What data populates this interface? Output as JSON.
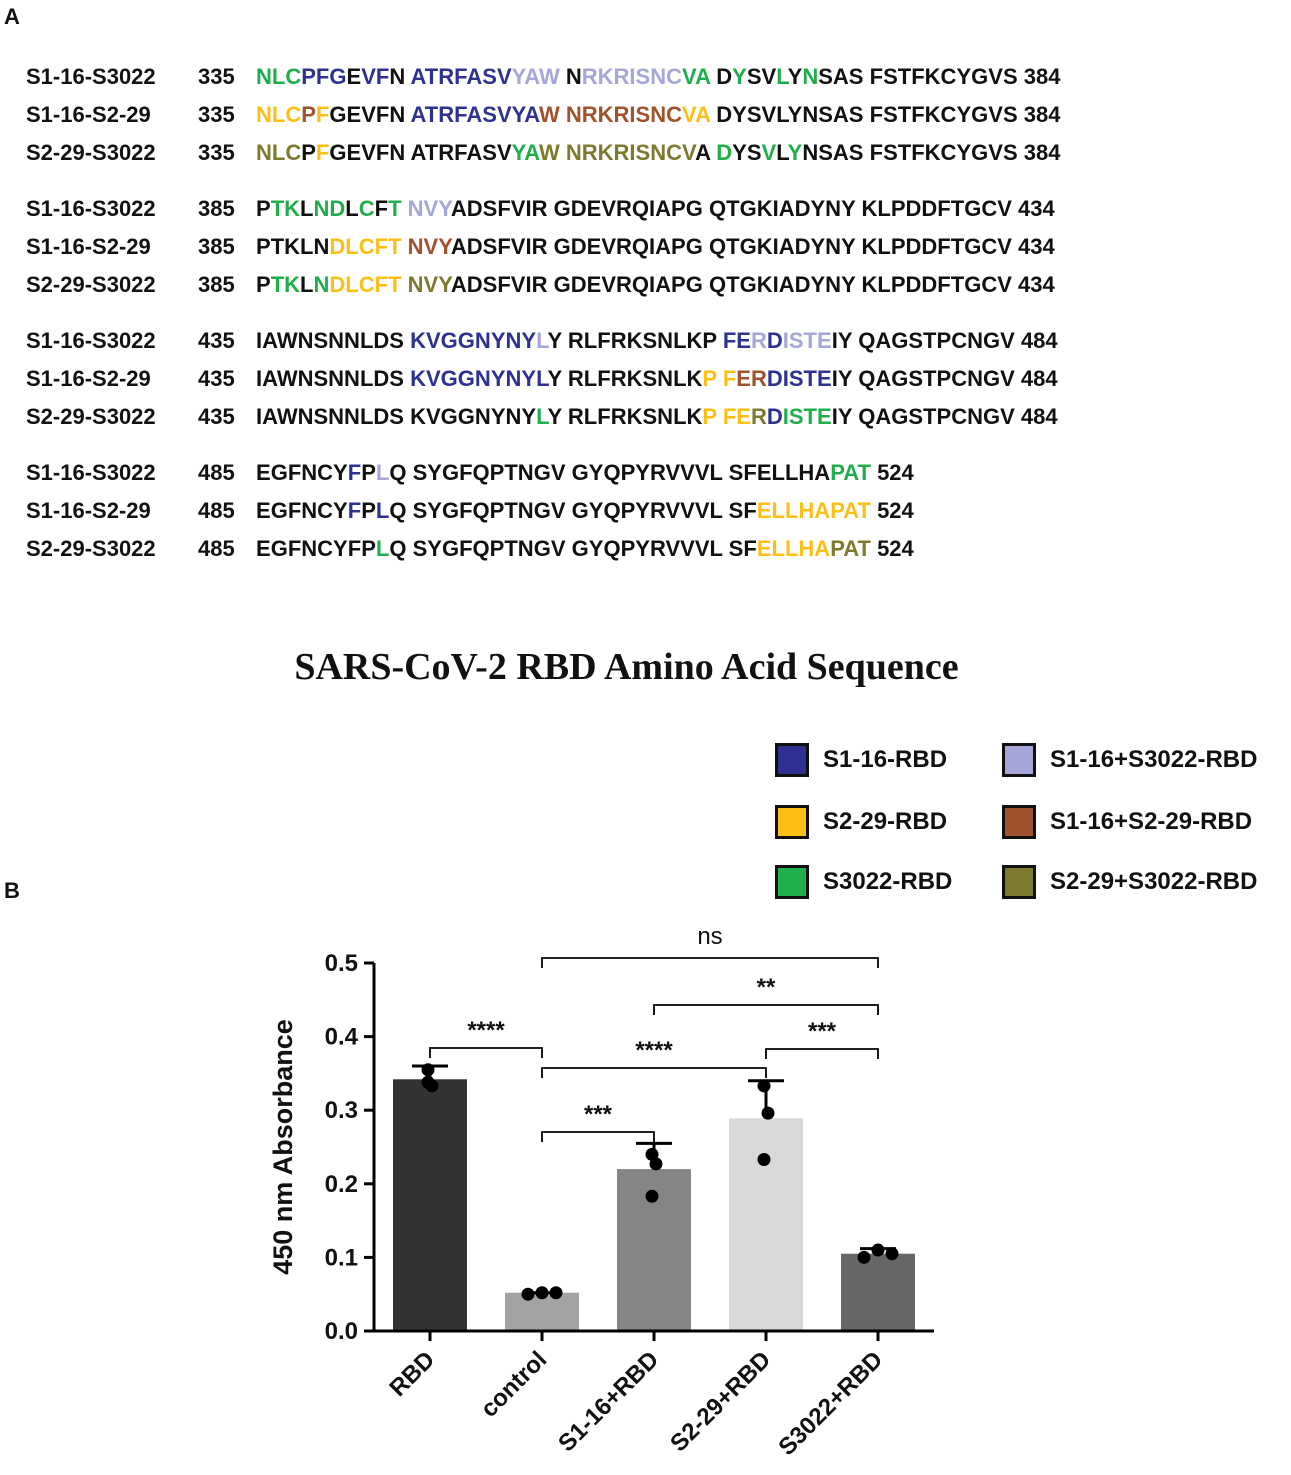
{
  "panels": {
    "a": "A",
    "b": "B"
  },
  "alignment": {
    "title": "SARS-CoV-2 RBD Amino Acid Sequence",
    "blocks": [
      {
        "rows": [
          {
            "name": "S1-16-S3022",
            "start": "335",
            "sequence": "NLCPFGEVFN ATRFASVYAW NRKRISNCVA DYSVLYNSAS FSTFKCYGVS",
            "end": "384"
          },
          {
            "name": "S1-16-S2-29",
            "start": "335",
            "sequence": "NLCPFGEVFN ATRFASVYAW NRKRISNCVA DYSVLYNSAS FSTFKCYGVS",
            "end": "384"
          },
          {
            "name": "S2-29-S3022",
            "start": "335",
            "sequence": "NLCPFGEVFN ATRFASVYAW NRKRISNCVA DYSVLYNSAS FSTFKCYGVS",
            "end": "384"
          }
        ]
      },
      {
        "rows": [
          {
            "name": "S1-16-S3022",
            "start": "385",
            "sequence": "PTKLNDLCFT NVYADSFVIR GDEVRQIAPG QTGKIADYNY KLPDDFTGCV",
            "end": "434"
          },
          {
            "name": "S1-16-S2-29",
            "start": "385",
            "sequence": "PTKLNDLCFT NVYADSFVIR GDEVRQIAPG QTGKIADYNY KLPDDFTGCV",
            "end": "434"
          },
          {
            "name": "S2-29-S3022",
            "start": "385",
            "sequence": "PTKLNDLCFT NVYADSFVIR GDEVRQIAPG QTGKIADYNY KLPDDFTGCV",
            "end": "434"
          }
        ]
      },
      {
        "rows": [
          {
            "name": "S1-16-S3022",
            "start": "435",
            "sequence": "IAWNSNNLDS KVGGNYNYLY RLFRKSNLKP FERDISTEIY QAGSTPCNGV",
            "end": "484"
          },
          {
            "name": "S1-16-S2-29",
            "start": "435",
            "sequence": "IAWNSNNLDS KVGGNYNYLY RLFRKSNLKP FERDISTEIY QAGSTPCNGV",
            "end": "484"
          },
          {
            "name": "S2-29-S3022",
            "start": "435",
            "sequence": "IAWNSNNLDS KVGGNYNYLY RLFRKSNLKP FERDISTEIY QAGSTPCNGV",
            "end": "484"
          }
        ]
      },
      {
        "rows": [
          {
            "name": "S1-16-S3022",
            "start": "485",
            "sequence": "EGFNCYFPLQ SYGFQPTNGV GYQPYRVVVL SFELLHAPAT",
            "end": "524"
          },
          {
            "name": "S1-16-S2-29",
            "start": "485",
            "sequence": "EGFNCYFPLQ SYGFQPTNGV GYQPYRVVVL SFELLHAPAT",
            "end": "524"
          },
          {
            "name": "S2-29-S3022",
            "start": "485",
            "sequence": "EGFNCYFPLQ SYGFQPTNGV GYQPYRVVVL SFELLHAPAT",
            "end": "524"
          }
        ]
      }
    ]
  },
  "legend": [
    {
      "label": "S1-16-RBD",
      "color": "#2e3192"
    },
    {
      "label": "S2-29-RBD",
      "color": "#fbbf16"
    },
    {
      "label": "S3022-RBD",
      "color": "#1fae4b"
    },
    {
      "label": "S1-16+S3022-RBD",
      "color": "#a6a6d8"
    },
    {
      "label": "S1-16+S2-29-RBD",
      "color": "#a0522d"
    },
    {
      "label": "S2-29+S3022-RBD",
      "color": "#7d7a2e"
    }
  ],
  "chart_data": {
    "type": "bar",
    "ylabel": "450 nm Absorbance",
    "ylim": [
      0,
      0.5
    ],
    "yticks": [
      "0.0",
      "0.1",
      "0.2",
      "0.3",
      "0.4",
      "0.5"
    ],
    "categories": [
      "RBD",
      "control",
      "S1-16+RBD",
      "S2-29+RBD",
      "S3022+RBD"
    ],
    "values": [
      0.342,
      0.052,
      0.22,
      0.289,
      0.105
    ],
    "error_upper": [
      0.36,
      0.052,
      0.255,
      0.34,
      0.112
    ],
    "points": [
      [
        0.355,
        0.333,
        0.338
      ],
      [
        0.05,
        0.052,
        0.052
      ],
      [
        0.24,
        0.227,
        0.183
      ],
      [
        0.333,
        0.296,
        0.233
      ],
      [
        0.1,
        0.11,
        0.105
      ]
    ],
    "bar_colors": [
      "#333333",
      "#a3a3a3",
      "#858585",
      "#d9d9d9",
      "#666666"
    ],
    "significance": [
      {
        "from": 0,
        "to": 1,
        "label": "****"
      },
      {
        "from": 1,
        "to": 2,
        "label": "***"
      },
      {
        "from": 1,
        "to": 3,
        "label": "****"
      },
      {
        "from": 3,
        "to": 4,
        "label": "***"
      },
      {
        "from": 2,
        "to": 4,
        "label": "**"
      },
      {
        "from": 1,
        "to": 4,
        "label": "ns"
      }
    ]
  }
}
